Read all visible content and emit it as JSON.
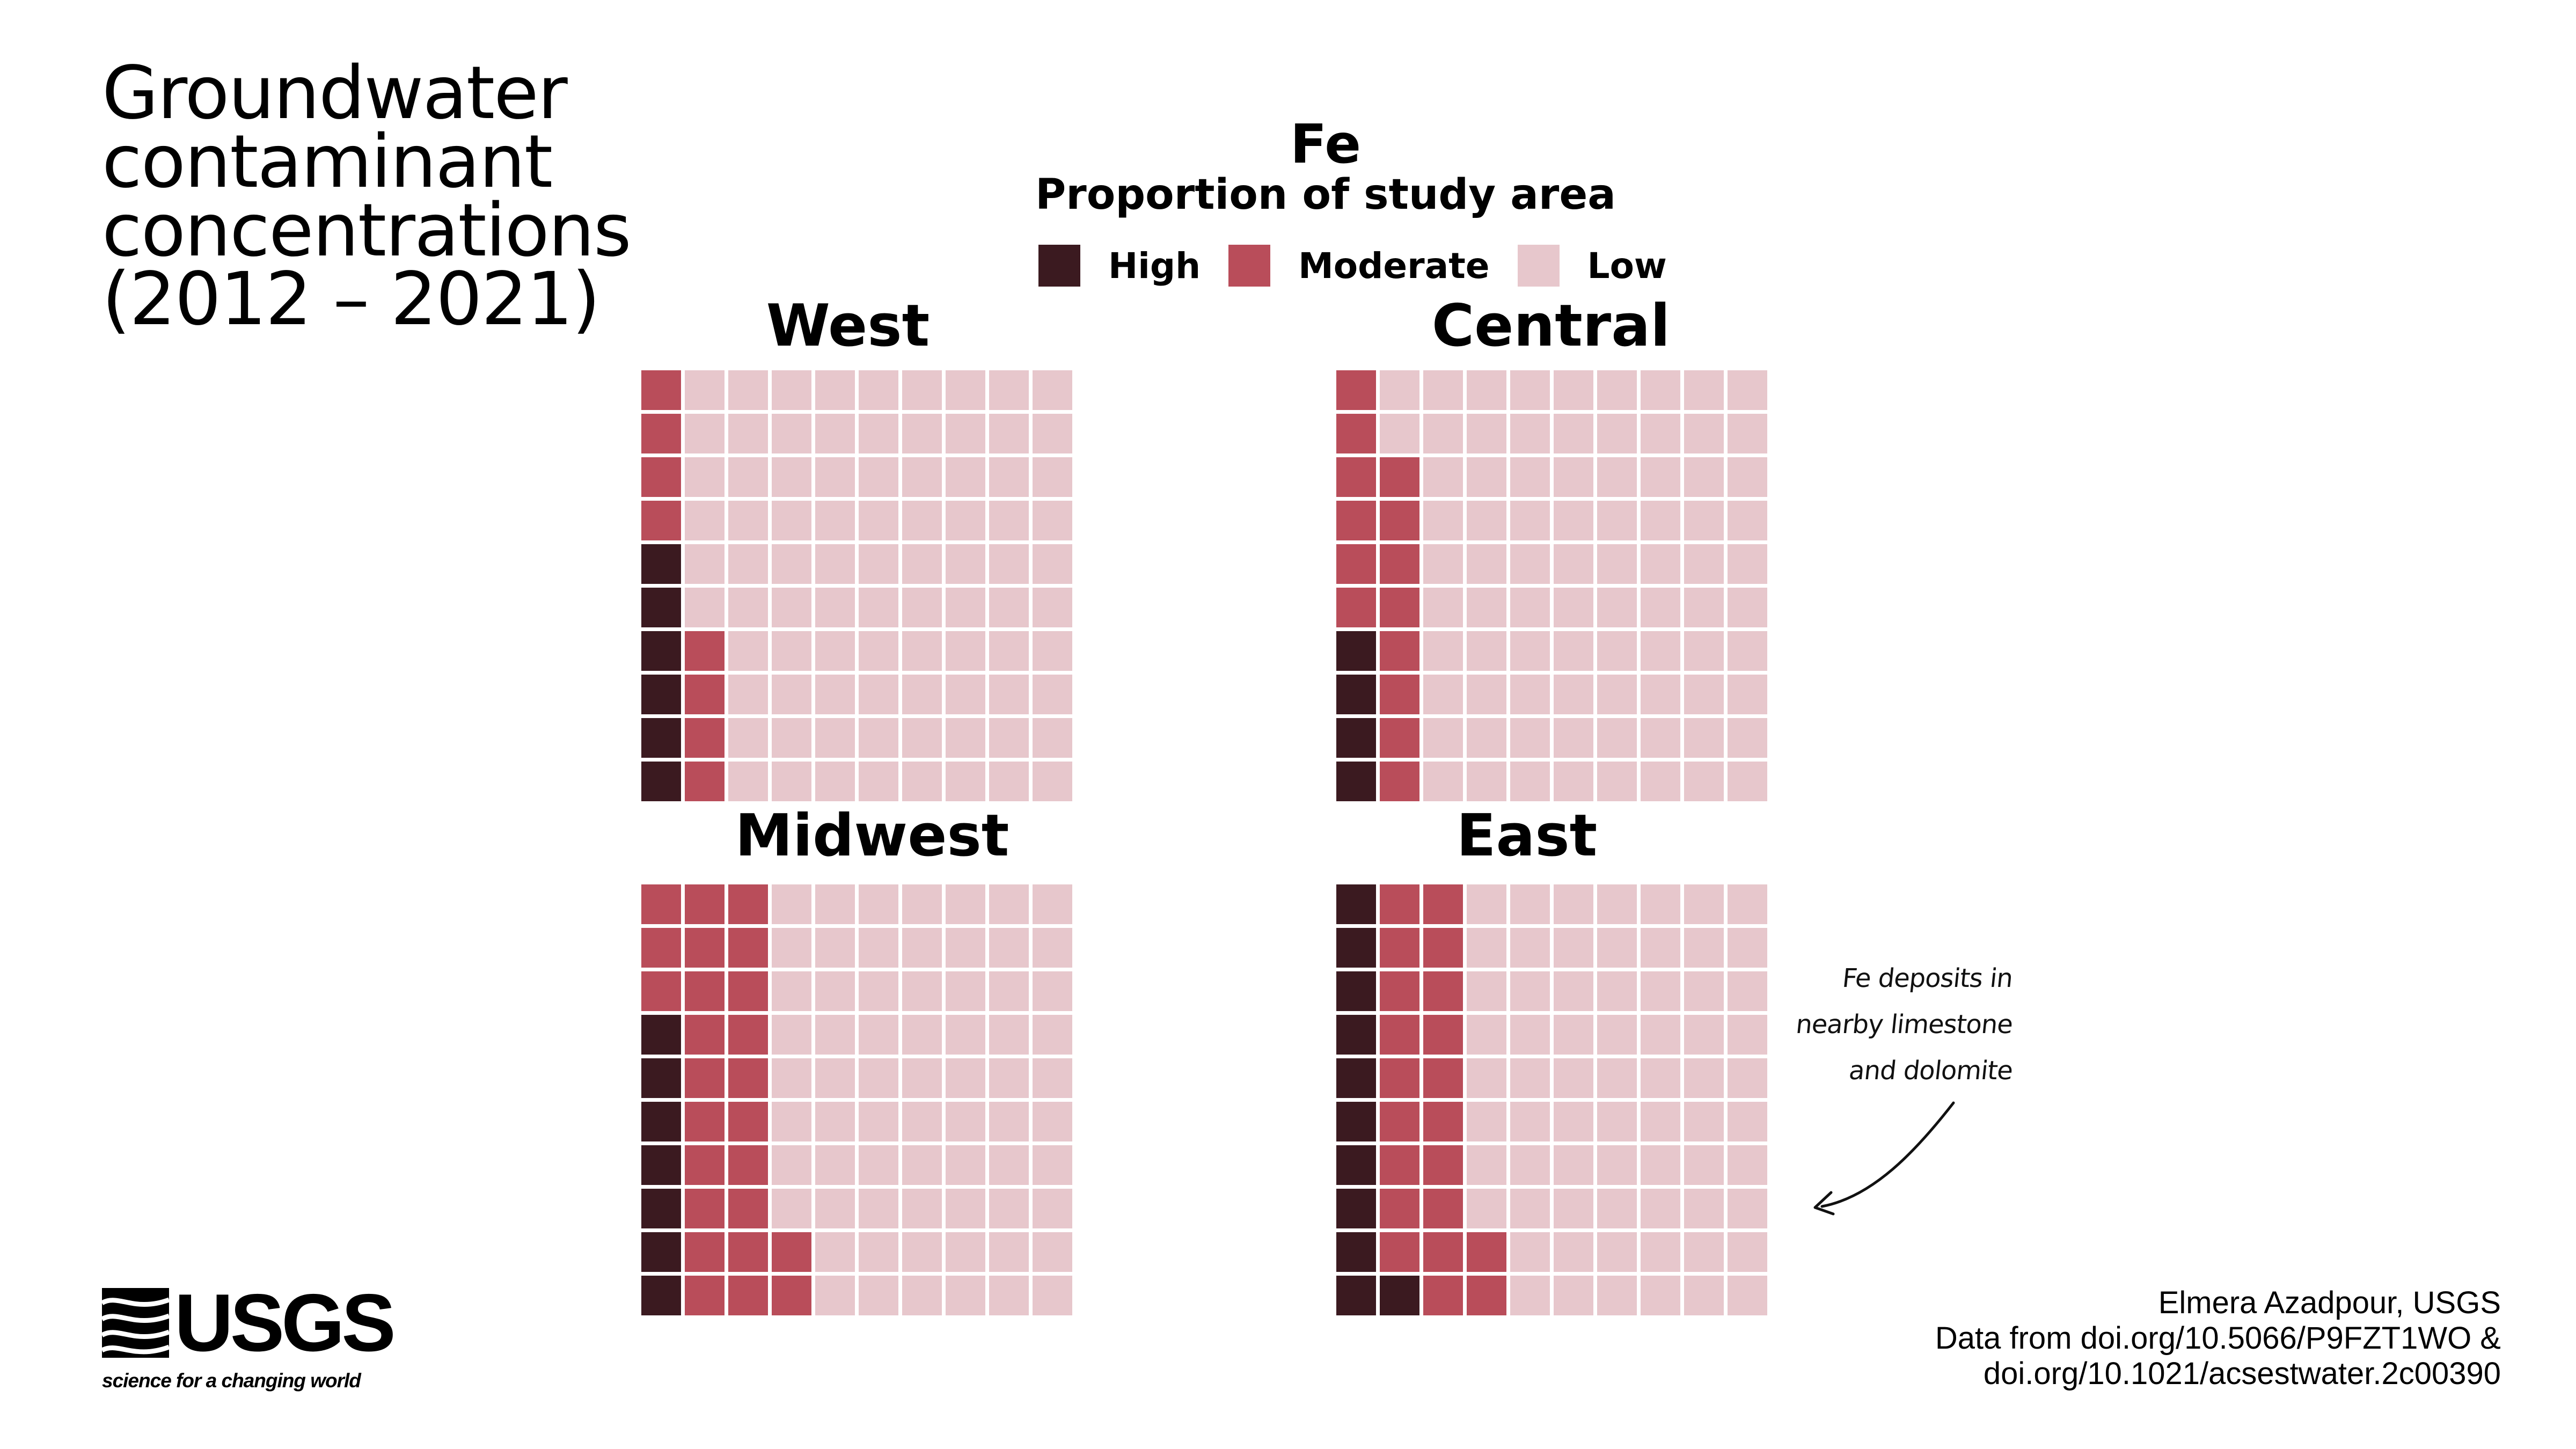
{
  "title": "Groundwater contaminant concentrations (2012 – 2021)",
  "legend": {
    "contaminant": "Fe",
    "subtitle": "Proportion of study area",
    "items": [
      {
        "label": "High",
        "color": "#3b1a20"
      },
      {
        "label": "Moderate",
        "color": "#b94d5a"
      },
      {
        "label": "Low",
        "color": "#e7c7cc"
      }
    ]
  },
  "annotation": {
    "lines": [
      "Fe deposits in",
      "nearby limestone",
      "and dolomite"
    ]
  },
  "credits": {
    "lines": [
      "Elmera Azadpour, USGS",
      "Data from doi.org/10.5066/P9FZT1WO &",
      "doi.org/10.1021/acsestwater.2c00390"
    ]
  },
  "logo": {
    "word": "USGS",
    "tagline": "science for a changing world"
  },
  "chart_data": {
    "type": "waffle",
    "grid": "10x10",
    "unit": "percent of study area",
    "categories": [
      "High",
      "Moderate",
      "Low"
    ],
    "panels": [
      {
        "name": "West",
        "values": {
          "High": 6,
          "Moderate": 8,
          "Low": 86
        }
      },
      {
        "name": "Central",
        "values": {
          "High": 4,
          "Moderate": 14,
          "Low": 82
        }
      },
      {
        "name": "Midwest",
        "values": {
          "High": 7,
          "Moderate": 25,
          "Low": 68
        }
      },
      {
        "name": "East",
        "values": {
          "High": 11,
          "Moderate": 21,
          "Low": 68
        }
      }
    ]
  }
}
